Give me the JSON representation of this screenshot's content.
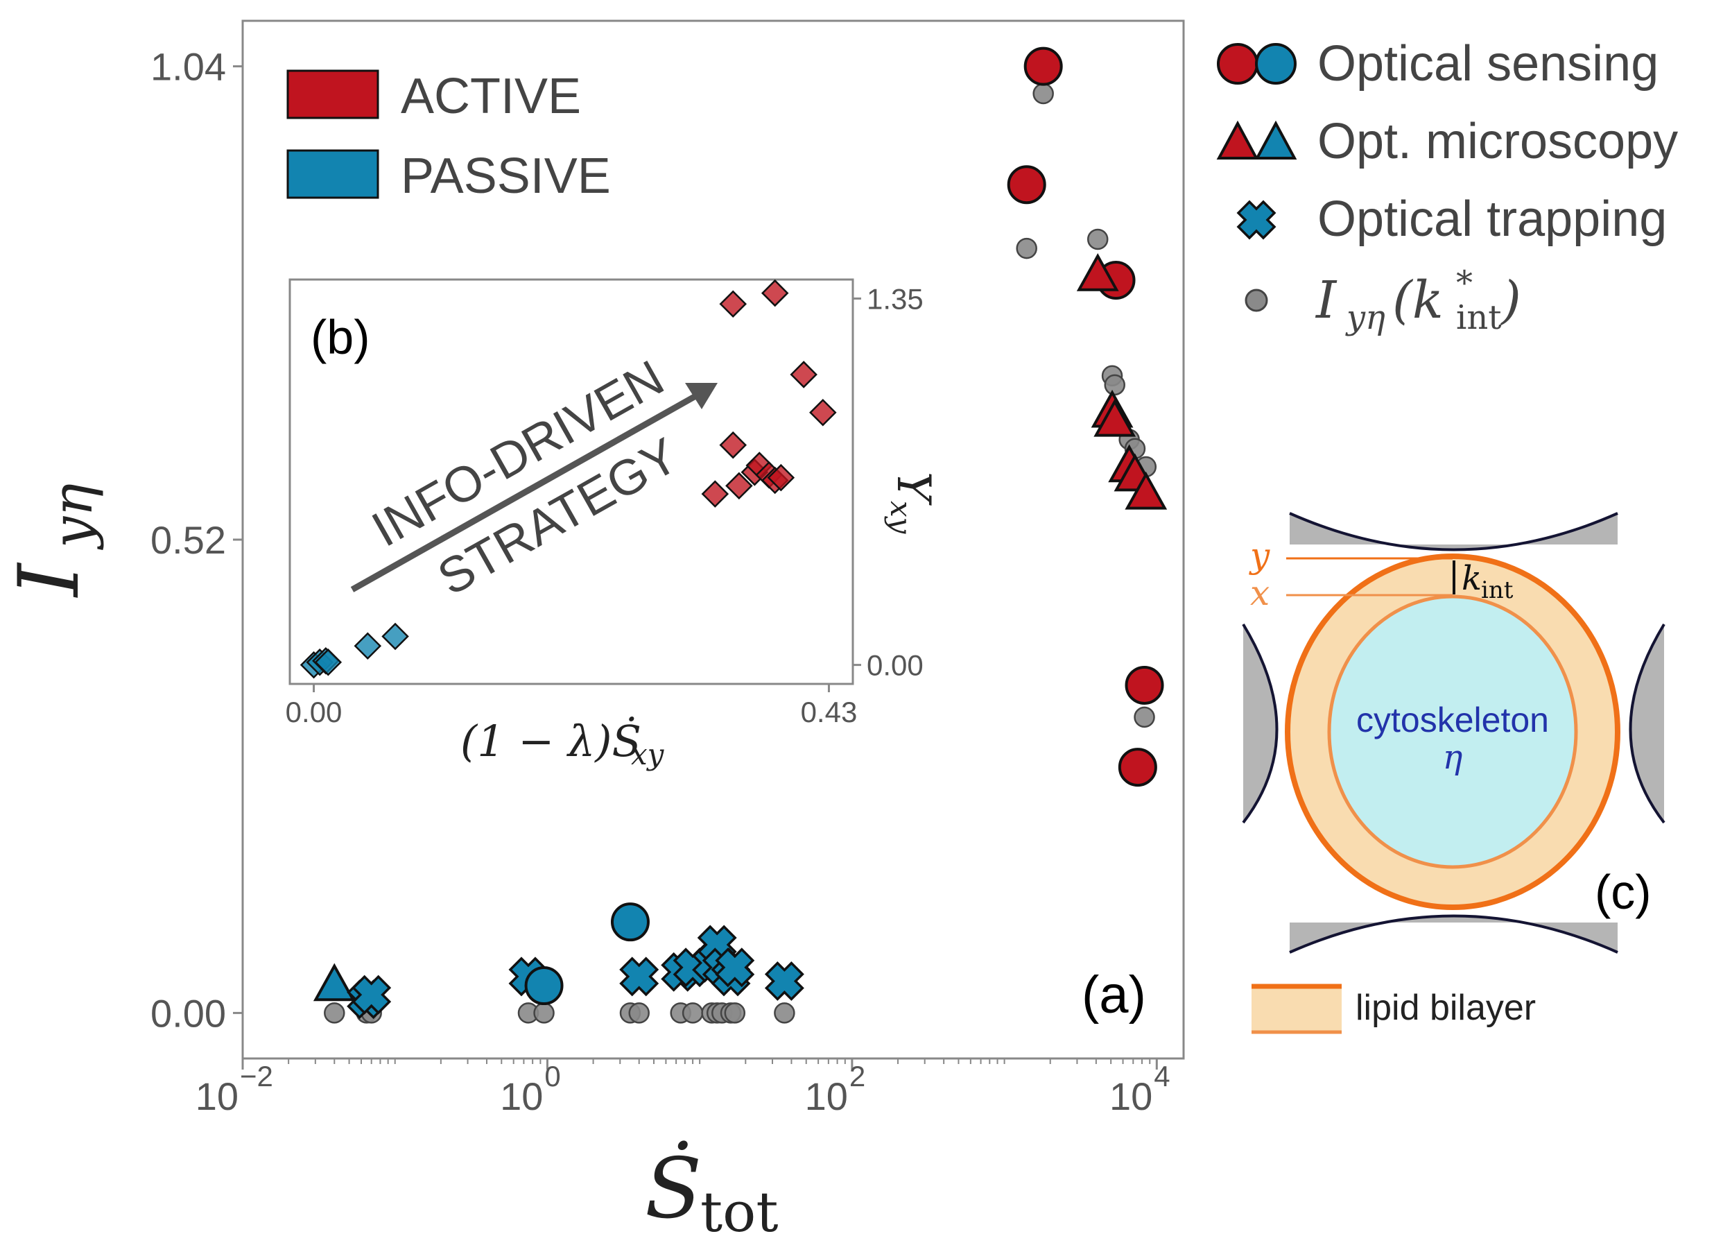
{
  "chart_data": {
    "type": "scatter",
    "panel_label": "(a)",
    "xlabel": "Ṡ",
    "xlabel_sub": "tot",
    "ylabel": "I",
    "ylabel_sub": "yη",
    "xscale": "log",
    "xlim": [
      0.01,
      15000
    ],
    "ylim": [
      -0.05,
      1.09
    ],
    "xticks": [
      {
        "value": 0.01,
        "base": "10",
        "exp": "−2"
      },
      {
        "value": 1,
        "base": "10",
        "exp": "0"
      },
      {
        "value": 100,
        "base": "10",
        "exp": "2"
      },
      {
        "value": 10000,
        "base": "10",
        "exp": "4"
      }
    ],
    "yticks": [
      {
        "value": 0.0,
        "label": "0.00"
      },
      {
        "value": 0.52,
        "label": "0.52"
      },
      {
        "value": 1.04,
        "label": "1.04"
      }
    ],
    "grid": false,
    "colors": {
      "active": "#c0141f",
      "passive": "#1284b0",
      "gray": "#8a8a8a",
      "frame": "#888888"
    },
    "category_legend": {
      "placement": "top-left",
      "entries": [
        {
          "label": "ACTIVE",
          "color": "#c0141f"
        },
        {
          "label": "PASSIVE",
          "color": "#1284b0"
        }
      ]
    },
    "marker_legend": {
      "placement": "outside-right",
      "entries": [
        {
          "label": "Optical sensing",
          "marker": "circle-pair"
        },
        {
          "label": "Opt. microscopy",
          "marker": "triangle-pair"
        },
        {
          "label": "Optical trapping",
          "marker": "cross"
        },
        {
          "label": "I",
          "label_sub": "yη",
          "label_paren": "(k",
          "label_paren_sup": "*",
          "label_paren_sub": "int",
          "label_close": ")",
          "marker": "gray-dot"
        }
      ]
    },
    "series": [
      {
        "name": "ACTIVE",
        "group": "active",
        "points": [
          {
            "x": 1800,
            "y": 1.04,
            "shape": "circle",
            "gray_y": 1.01
          },
          {
            "x": 1400,
            "y": 0.91,
            "shape": "circle",
            "gray_y": 0.84
          },
          {
            "x": 5400,
            "y": 0.805,
            "shape": "circle",
            "gray_y": 0.805
          },
          {
            "x": 4100,
            "y": 0.81,
            "shape": "triangle",
            "gray_y": 0.85
          },
          {
            "x": 5100,
            "y": 0.66,
            "shape": "triangle",
            "gray_y": 0.7
          },
          {
            "x": 5300,
            "y": 0.65,
            "shape": "triangle",
            "gray_y": 0.69
          },
          {
            "x": 6600,
            "y": 0.6,
            "shape": "triangle",
            "gray_y": 0.63
          },
          {
            "x": 7200,
            "y": 0.59,
            "shape": "triangle",
            "gray_y": 0.62
          },
          {
            "x": 8500,
            "y": 0.57,
            "shape": "triangle",
            "gray_y": 0.6
          },
          {
            "x": 8300,
            "y": 0.36,
            "shape": "circle",
            "gray_y": 0.325
          },
          {
            "x": 7500,
            "y": 0.27,
            "shape": "circle",
            "gray_y": 0.265
          }
        ]
      },
      {
        "name": "PASSIVE",
        "group": "passive",
        "points": [
          {
            "x": 0.04,
            "y": 0.03,
            "shape": "triangle",
            "gray_y": 0.0
          },
          {
            "x": 0.065,
            "y": 0.015,
            "shape": "cross",
            "gray_y": 0.0
          },
          {
            "x": 0.07,
            "y": 0.02,
            "shape": "cross",
            "gray_y": 0.0
          },
          {
            "x": 0.75,
            "y": 0.04,
            "shape": "cross",
            "gray_y": 0.0
          },
          {
            "x": 0.95,
            "y": 0.03,
            "shape": "circle",
            "gray_y": 0.0
          },
          {
            "x": 3.5,
            "y": 0.1,
            "shape": "circle",
            "gray_y": 0.0
          },
          {
            "x": 4.0,
            "y": 0.04,
            "shape": "cross",
            "gray_y": 0.0
          },
          {
            "x": 7.5,
            "y": 0.045,
            "shape": "cross",
            "gray_y": 0.0
          },
          {
            "x": 9.0,
            "y": 0.05,
            "shape": "cross",
            "gray_y": 0.0
          },
          {
            "x": 12.0,
            "y": 0.055,
            "shape": "cross",
            "gray_y": 0.0
          },
          {
            "x": 13.0,
            "y": 0.075,
            "shape": "cross",
            "gray_y": 0.0
          },
          {
            "x": 14.0,
            "y": 0.05,
            "shape": "cross",
            "gray_y": 0.0
          },
          {
            "x": 16.0,
            "y": 0.04,
            "shape": "cross",
            "gray_y": 0.0
          },
          {
            "x": 17.0,
            "y": 0.05,
            "shape": "cross",
            "gray_y": 0.0
          },
          {
            "x": 36.0,
            "y": 0.035,
            "shape": "cross",
            "gray_y": 0.0
          }
        ]
      }
    ],
    "inset": {
      "panel_label": "(b)",
      "type": "scatter",
      "xlabel": "(1 − λ)Ṡ",
      "xlabel_sub": "xy",
      "ylabel": "Υ",
      "ylabel_sub": "xy",
      "xlim": [
        -0.02,
        0.45
      ],
      "ylim": [
        -0.07,
        1.42
      ],
      "xticks": [
        {
          "value": 0.0,
          "label": "0.00"
        },
        {
          "value": 0.43,
          "label": "0.43"
        }
      ],
      "yticks": [
        {
          "value": 0.0,
          "label": "0.00"
        },
        {
          "value": 1.35,
          "label": "1.35"
        }
      ],
      "annotation": [
        "INFO-DRIVEN",
        "STRATEGY"
      ],
      "points": [
        {
          "x": 0.0,
          "y": 0.0,
          "group": "passive"
        },
        {
          "x": 0.005,
          "y": 0.01,
          "group": "passive"
        },
        {
          "x": 0.01,
          "y": 0.015,
          "group": "passive"
        },
        {
          "x": 0.012,
          "y": 0.01,
          "group": "passive"
        },
        {
          "x": 0.045,
          "y": 0.07,
          "group": "passive"
        },
        {
          "x": 0.068,
          "y": 0.105,
          "group": "passive"
        },
        {
          "x": 0.35,
          "y": 1.33,
          "group": "active"
        },
        {
          "x": 0.385,
          "y": 1.37,
          "group": "active"
        },
        {
          "x": 0.409,
          "y": 1.07,
          "group": "active"
        },
        {
          "x": 0.425,
          "y": 0.93,
          "group": "active"
        },
        {
          "x": 0.35,
          "y": 0.81,
          "group": "active"
        },
        {
          "x": 0.335,
          "y": 0.63,
          "group": "active"
        },
        {
          "x": 0.355,
          "y": 0.66,
          "group": "active"
        },
        {
          "x": 0.368,
          "y": 0.71,
          "group": "active"
        },
        {
          "x": 0.372,
          "y": 0.735,
          "group": "active"
        },
        {
          "x": 0.38,
          "y": 0.7,
          "group": "active"
        },
        {
          "x": 0.385,
          "y": 0.68,
          "group": "active"
        },
        {
          "x": 0.39,
          "y": 0.69,
          "group": "active"
        }
      ]
    },
    "schematic": {
      "panel_label": "(c)",
      "label_y": "y",
      "label_x": "x",
      "label_k": "k",
      "label_k_sub": "int",
      "inner_label": "cytoskeleton",
      "inner_symbol": "η",
      "legend_label": "lipid bilayer",
      "colors": {
        "membrane": "#f07017",
        "membrane_fill": "#f9dcb0",
        "inner_fill": "#c2eef0",
        "inner_text": "#2233aa",
        "plates": "#b5b5b5"
      }
    }
  }
}
